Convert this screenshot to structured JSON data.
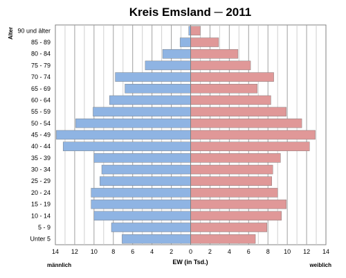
{
  "chart_data": {
    "type": "bar",
    "orientation": "horizontal-pyramid",
    "title": "Kreis Emsland ─ 2011",
    "ylabel": "Alter",
    "xlabel": "EW (in Tsd.)",
    "left_label": "männlich",
    "right_label": "weiblich",
    "xlim": [
      -14,
      14
    ],
    "x_ticks": [
      -14,
      -12,
      -10,
      -8,
      -6,
      -4,
      -2,
      0,
      2,
      4,
      6,
      8,
      10,
      12,
      14
    ],
    "x_tick_labels": [
      "14",
      "12",
      "10",
      "8",
      "6",
      "4",
      "2",
      "0",
      "2",
      "4",
      "6",
      "8",
      "10",
      "12",
      "14"
    ],
    "grid": "vertical",
    "categories": [
      "90 und älter",
      "85 - 89",
      "80 - 84",
      "75 - 79",
      "70 - 74",
      "65 - 69",
      "60 - 64",
      "55 - 59",
      "50 - 54",
      "45 - 49",
      "40 - 44",
      "35 - 39",
      "30 - 34",
      "25 - 29",
      "20 - 24",
      "15 - 19",
      "10 - 14",
      "5 - 9",
      "Unter 5"
    ],
    "series": [
      {
        "side": "left",
        "color": "#8fb4e3",
        "values": [
          0.2,
          1.1,
          2.9,
          4.7,
          7.8,
          6.8,
          8.4,
          10.1,
          11.9,
          13.9,
          13.2,
          10.0,
          9.2,
          9.4,
          10.3,
          10.3,
          10.0,
          8.2,
          7.1
        ]
      },
      {
        "side": "right",
        "color": "#e09898",
        "values": [
          1.0,
          2.9,
          4.9,
          6.2,
          8.6,
          6.9,
          8.3,
          9.9,
          11.5,
          12.9,
          12.3,
          9.3,
          8.5,
          8.4,
          9.0,
          9.9,
          9.4,
          7.9,
          6.7
        ]
      }
    ]
  }
}
